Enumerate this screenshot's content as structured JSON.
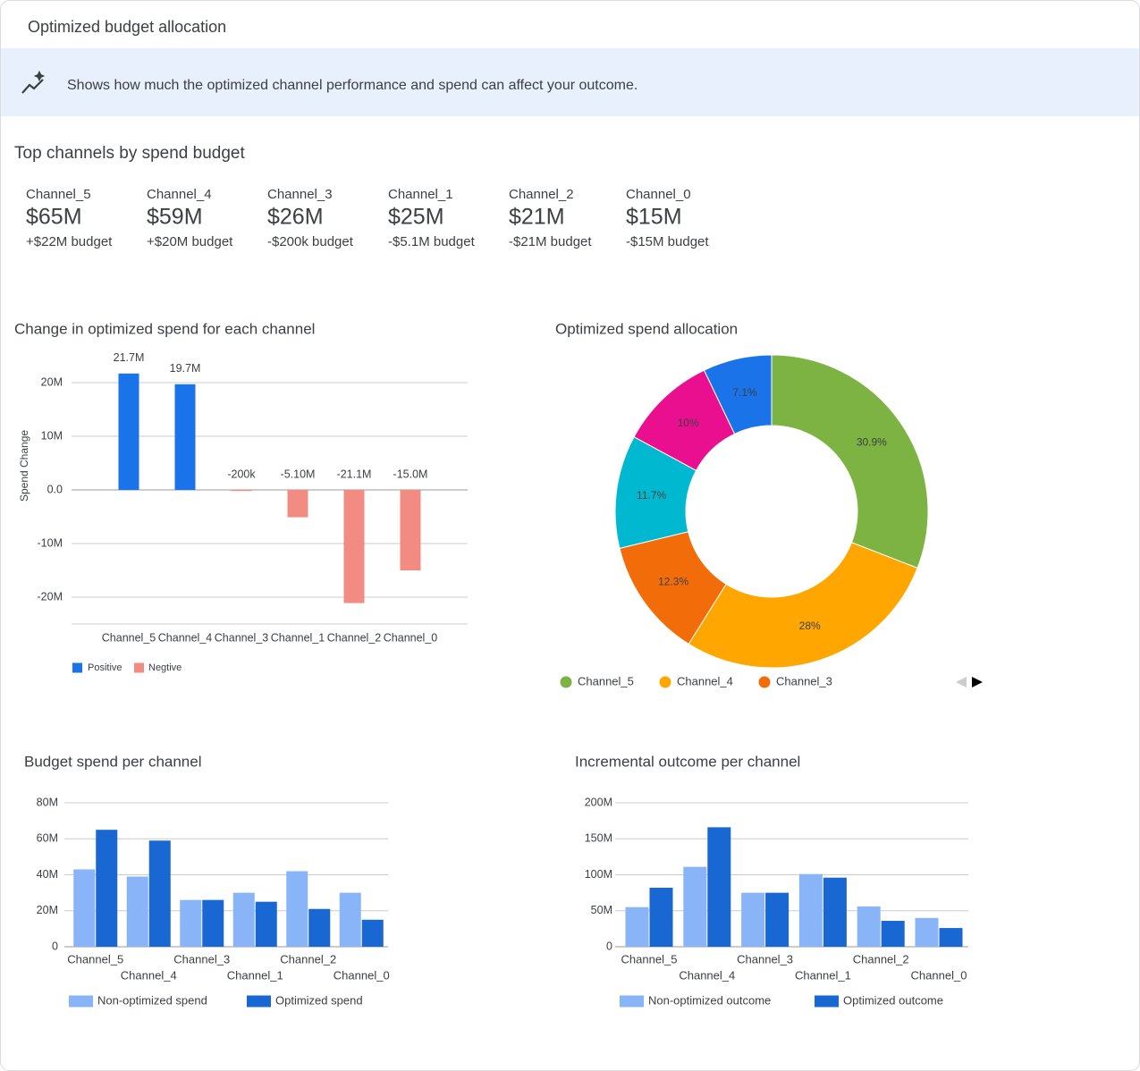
{
  "header": {
    "title": "Optimized budget allocation"
  },
  "banner": {
    "text": "Shows how much the optimized channel performance and spend can affect your outcome."
  },
  "top_channels": {
    "title": "Top channels by spend budget",
    "items": [
      {
        "name": "Channel_5",
        "spend": "$65M",
        "change": "+$22M budget",
        "color": "#188038"
      },
      {
        "name": "Channel_4",
        "spend": "$59M",
        "change": "+$20M budget",
        "color": "#188038"
      },
      {
        "name": "Channel_3",
        "spend": "$26M",
        "change": "-$200k budget",
        "color": "#d93025"
      },
      {
        "name": "Channel_1",
        "spend": "$25M",
        "change": "-$5.1M budget",
        "color": "#d93025"
      },
      {
        "name": "Channel_2",
        "spend": "$21M",
        "change": "-$21M budget",
        "color": "#d93025"
      },
      {
        "name": "Channel_0",
        "spend": "$15M",
        "change": "-$15M budget",
        "color": "#d93025"
      }
    ]
  },
  "chart_data": [
    {
      "type": "bar",
      "title": "Change in optimized spend for each channel",
      "y_label": "Spend Change",
      "categories": [
        "Channel_5",
        "Channel_4",
        "Channel_3",
        "Channel_1",
        "Channel_2",
        "Channel_0"
      ],
      "series": [
        {
          "name": "Positive",
          "color": "#1a73e8",
          "values": [
            21.7,
            19.7,
            null,
            null,
            null,
            null
          ],
          "value_labels": [
            "21.7M",
            "19.7M",
            null,
            null,
            null,
            null
          ]
        },
        {
          "name": "Negtive",
          "color": "#f28b82",
          "values": [
            null,
            null,
            -0.2,
            -5.1,
            -21.1,
            -15.0
          ],
          "value_labels": [
            null,
            null,
            "-200k",
            "-5.10M",
            "-21.1M",
            "-15.0M"
          ]
        }
      ],
      "ylim": [
        -25,
        25
      ],
      "yticks": [
        {
          "value": -20,
          "label": "-20M"
        },
        {
          "value": -10,
          "label": "-10M"
        },
        {
          "value": 0,
          "label": "0.0"
        },
        {
          "value": 10,
          "label": "10M"
        },
        {
          "value": 20,
          "label": "20M"
        }
      ],
      "grid": true
    },
    {
      "type": "pie",
      "title": "Optimized spend allocation",
      "donut": true,
      "categories": [
        "Channel_5",
        "Channel_4",
        "Channel_3",
        null,
        null,
        null
      ],
      "values": [
        30.9,
        28,
        12.3,
        11.7,
        10,
        7.1
      ],
      "value_labels": [
        "30.9%",
        "28%",
        "12.3%",
        "11.7%",
        "10%",
        "7.1%"
      ],
      "colors": [
        "#7cb342",
        "#ffa600",
        "#f36c0a",
        "#00b8d0",
        "#ea0f8e",
        "#1a73e8"
      ]
    },
    {
      "type": "bar",
      "title": "Budget spend per channel",
      "categories": [
        "Channel_5",
        "Channel_4",
        "Channel_3",
        "Channel_1",
        "Channel_2",
        "Channel_0"
      ],
      "series": [
        {
          "name": "Non-optimized spend",
          "color": "#8ab4f8",
          "values": [
            43,
            39,
            26,
            30,
            42,
            30
          ]
        },
        {
          "name": "Optimized spend",
          "color": "#1967d2",
          "values": [
            65,
            59,
            26,
            25,
            21,
            15
          ]
        }
      ],
      "ylim": [
        0,
        80
      ],
      "yticks": [
        0,
        {
          "value": 20,
          "label": "20M"
        },
        {
          "value": 40,
          "label": "40M"
        },
        {
          "value": 60,
          "label": "60M"
        },
        {
          "value": 80,
          "label": "80M"
        }
      ],
      "grid": true
    },
    {
      "type": "bar",
      "title": "Incremental outcome per channel",
      "categories": [
        "Channel_5",
        "Channel_4",
        "Channel_3",
        "Channel_1",
        "Channel_2",
        "Channel_0"
      ],
      "series": [
        {
          "name": "Non-optimized outcome",
          "color": "#8ab4f8",
          "values": [
            55,
            111,
            75,
            101,
            56,
            40
          ]
        },
        {
          "name": "Optimized outcome",
          "color": "#1967d2",
          "values": [
            82,
            166,
            75,
            96,
            36,
            26
          ]
        }
      ],
      "ylim": [
        0,
        200
      ],
      "yticks": [
        0,
        {
          "value": 50,
          "label": "50M"
        },
        {
          "value": 100,
          "label": "100M"
        },
        {
          "value": 150,
          "label": "150M"
        },
        {
          "value": 200,
          "label": "200M"
        }
      ],
      "grid": true
    }
  ]
}
